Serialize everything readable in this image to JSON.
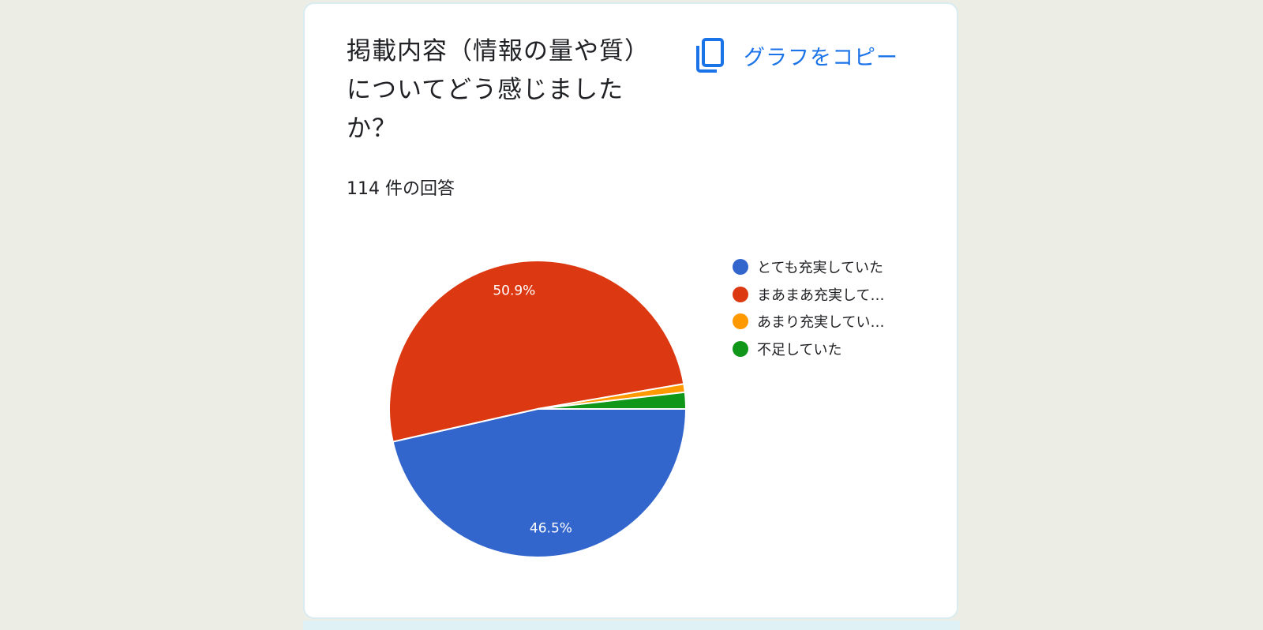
{
  "card": {
    "title": "掲載内容（情報の量や質）についてどう感じましたか？",
    "responses": "114 件の回答",
    "copy_label": "グラフをコピー",
    "copy_icon": "copy-icon"
  },
  "colors": {
    "page_bg": "#ecede4",
    "card_bg": "#ffffff",
    "accent": "#1a73e8"
  },
  "chart_data": {
    "type": "pie",
    "labels": [
      "とても充実していた",
      "まあまあ充実して…",
      "あまり充実してい…",
      "不足していた"
    ],
    "values": [
      46.5,
      50.9,
      0.9,
      1.8
    ],
    "value_labels": [
      "46.5%",
      "50.9%",
      "",
      ""
    ],
    "colors": [
      "#3366cc",
      "#dc3912",
      "#ff9900",
      "#109618"
    ],
    "legend": "right"
  }
}
